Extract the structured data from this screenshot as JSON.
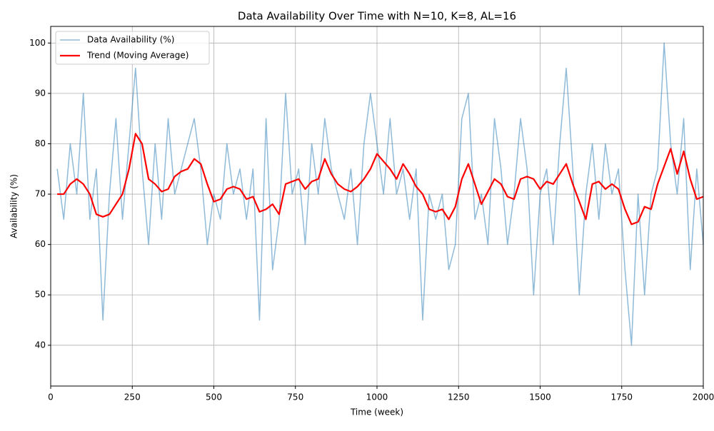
{
  "chart_data": {
    "type": "line",
    "title": "Data Availability Over Time with N=10, K=8, AL=16",
    "x_label": "Time (week)",
    "y_label": "Availability (%)",
    "x": [
      20,
      40,
      60,
      80,
      100,
      120,
      140,
      160,
      180,
      200,
      220,
      240,
      260,
      280,
      300,
      320,
      340,
      360,
      380,
      400,
      420,
      440,
      460,
      480,
      500,
      520,
      540,
      560,
      580,
      600,
      620,
      640,
      660,
      680,
      700,
      720,
      740,
      760,
      780,
      800,
      820,
      840,
      860,
      880,
      900,
      920,
      940,
      960,
      980,
      1000,
      1020,
      1040,
      1060,
      1080,
      1100,
      1120,
      1140,
      1160,
      1180,
      1200,
      1220,
      1240,
      1260,
      1280,
      1300,
      1320,
      1340,
      1360,
      1380,
      1400,
      1420,
      1440,
      1460,
      1480,
      1500,
      1520,
      1540,
      1560,
      1580,
      1600,
      1620,
      1640,
      1660,
      1680,
      1700,
      1720,
      1740,
      1760,
      1780,
      1800,
      1820,
      1840,
      1860,
      1880,
      1900,
      1920,
      1940,
      1960,
      1980,
      2000
    ],
    "series": [
      {
        "name": "Data Availability (%)",
        "color": "#1f77b4",
        "opacity": 0.5,
        "values": [
          75,
          65,
          80,
          70,
          90,
          65,
          75,
          45,
          70,
          85,
          65,
          80,
          95,
          75,
          60,
          80,
          65,
          85,
          70,
          75,
          80,
          85,
          75,
          60,
          70,
          65,
          80,
          70,
          75,
          65,
          75,
          45,
          85,
          55,
          65,
          90,
          70,
          75,
          60,
          80,
          70,
          85,
          75,
          70,
          65,
          75,
          60,
          80,
          90,
          80,
          70,
          85,
          70,
          75,
          65,
          75,
          45,
          70,
          65,
          70,
          55,
          60,
          85,
          90,
          65,
          70,
          60,
          85,
          75,
          60,
          70,
          85,
          75,
          50,
          70,
          75,
          60,
          80,
          95,
          75,
          50,
          70,
          80,
          65,
          80,
          70,
          75,
          55,
          40,
          70,
          50,
          70,
          75,
          100,
          80,
          70,
          85,
          55,
          75,
          60
        ]
      },
      {
        "name": "Trend (Moving Average)",
        "color": "#ff0000",
        "opacity": 1,
        "values": [
          70,
          70,
          72,
          73,
          72,
          70,
          66,
          65.5,
          66,
          68,
          70,
          75,
          82,
          80,
          73,
          72,
          70.5,
          71,
          73.5,
          74.5,
          75,
          77,
          76,
          72,
          68.5,
          69,
          71,
          71.5,
          71,
          69,
          69.5,
          66.5,
          67,
          68,
          66,
          72,
          72.5,
          73,
          71,
          72.5,
          73,
          77,
          74,
          72,
          71,
          70.5,
          71.5,
          73,
          75,
          78,
          76.5,
          75,
          73,
          76,
          74,
          71.5,
          70,
          67,
          66.5,
          67,
          65,
          67.5,
          73,
          76,
          72,
          68,
          70.5,
          73,
          72,
          69.5,
          69,
          73,
          73.5,
          73,
          71,
          72.5,
          72,
          74,
          76,
          72,
          68.5,
          65,
          72,
          72.5,
          71,
          72,
          71,
          67,
          64,
          64.5,
          67.5,
          67,
          72,
          75.5,
          79,
          74,
          78.5,
          73,
          69,
          69.5
        ]
      }
    ],
    "xlim": [
      0,
      2000
    ],
    "ylim": [
      31.9,
      103.3
    ],
    "xticks": [
      0,
      250,
      500,
      750,
      1000,
      1250,
      1500,
      1750,
      2000
    ],
    "yticks": [
      40,
      50,
      60,
      70,
      80,
      90,
      100
    ],
    "grid": true,
    "legend": "upper-left"
  }
}
